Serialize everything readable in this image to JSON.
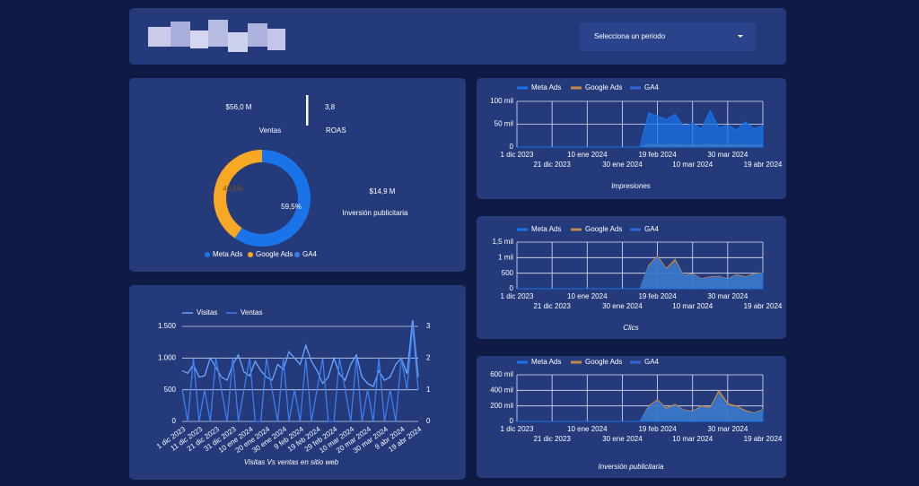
{
  "header": {
    "dropdown": "Selecciona un periodo"
  },
  "kpis": [
    {
      "value": "$56,0 M",
      "label": "Ventas"
    },
    {
      "value": "3,8",
      "label": "ROAS"
    },
    {
      "value": "$14,9 M",
      "label": "Inversión publicitaria"
    }
  ],
  "chart_data": [
    {
      "type": "pie",
      "categories": [
        "Meta Ads",
        "Google Ads",
        "GA4"
      ],
      "values": [
        59.5,
        40.5,
        0
      ],
      "value_labels": [
        "59,5%",
        "40,5%",
        null
      ],
      "colors": [
        "#1a73e8",
        "#f9a825",
        "#3f7be8"
      ]
    },
    {
      "type": "line",
      "title": "Visitas Vs ventas en sitio web",
      "categories": [
        "1 dic 2023",
        null,
        null,
        "11 dic 2023",
        null,
        null,
        "21 dic 2023",
        null,
        null,
        "31 dic 2023",
        null,
        null,
        "10 ene 2024",
        null,
        null,
        "20 ene 2024",
        null,
        null,
        "30 ene 2024",
        null,
        null,
        "9 feb 2024",
        null,
        null,
        "19 feb 2024",
        null,
        null,
        "29 feb 2024",
        null,
        null,
        "10 mar 2024",
        null,
        null,
        "20 mar 2024",
        null,
        null,
        "30 mar 2024",
        null,
        null,
        "9 abr 2024",
        null,
        null,
        "19 abr 2024"
      ],
      "series": [
        {
          "name": "Visitas",
          "color": "#6aa6ff",
          "values": [
            800,
            760,
            900,
            700,
            720,
            1000,
            850,
            700,
            650,
            900,
            1050,
            780,
            720,
            950,
            800,
            700,
            650,
            900,
            820,
            1100,
            1000,
            900,
            1200,
            950,
            800,
            600,
            700,
            1000,
            750,
            650,
            900,
            1050,
            700,
            600,
            550,
            800,
            650,
            700,
            900,
            1000,
            750,
            1600,
            700
          ]
        },
        {
          "name": "Ventas",
          "color": "#3d7ef0",
          "axis": "y2",
          "values": [
            1,
            0,
            2,
            0,
            1,
            0,
            2,
            1,
            0,
            2,
            0,
            1,
            2,
            0,
            0,
            2,
            1,
            0,
            2,
            0,
            1,
            0,
            2,
            0,
            1,
            2,
            0,
            0,
            2,
            1,
            0,
            2,
            0,
            1,
            0,
            2,
            0,
            1,
            0,
            2,
            1,
            3,
            1
          ]
        }
      ],
      "ylim": [
        0,
        1500
      ],
      "yticks": [
        0,
        500,
        {
          "value": 1000,
          "label": "1.000"
        },
        {
          "value": 1500,
          "label": "1.500"
        }
      ],
      "y2lim": [
        0,
        3
      ],
      "y2ticks": [
        0,
        1,
        2,
        3
      ],
      "grid": true
    },
    {
      "type": "area",
      "title": "Impresiones",
      "categories": [
        "1 dic 2023",
        null,
        null,
        null,
        "21 dic 2023",
        null,
        null,
        null,
        "10 ene 2024",
        null,
        null,
        null,
        "30 ene 2024",
        null,
        null,
        null,
        "19 feb 2024",
        null,
        null,
        null,
        "10 mar 2024",
        null,
        null,
        null,
        "30 mar 2024",
        null,
        null,
        null,
        "19 abr 2024"
      ],
      "series": [
        {
          "name": "Meta Ads",
          "color": "#1a73e8",
          "values": [
            0,
            0,
            0,
            0,
            0,
            0,
            0,
            0,
            0,
            0,
            0,
            0,
            0,
            0,
            0,
            75000,
            68000,
            60000,
            72000,
            45000,
            52000,
            40000,
            80000,
            42000,
            48000,
            38000,
            55000,
            40000,
            47000
          ]
        },
        {
          "name": "Google Ads",
          "color": "#c08a4a",
          "values": [
            0,
            0,
            0,
            0,
            0,
            0,
            0,
            0,
            0,
            0,
            0,
            0,
            0,
            0,
            0,
            6000,
            5000,
            5000,
            6000,
            4000,
            5000,
            4000,
            6000,
            4000,
            5000,
            4000,
            5000,
            4000,
            4000
          ]
        },
        {
          "name": "GA4",
          "color": "#3367d6",
          "values": [
            0,
            0,
            0,
            0,
            0,
            0,
            0,
            0,
            0,
            0,
            0,
            0,
            0,
            0,
            0,
            0,
            0,
            0,
            0,
            0,
            0,
            0,
            0,
            0,
            0,
            0,
            0,
            0,
            0
          ]
        }
      ],
      "ylim": [
        0,
        100000
      ],
      "yticks": [
        0,
        {
          "value": 50000,
          "label": "50 mil"
        },
        {
          "value": 100000,
          "label": "100 mil"
        }
      ],
      "grid": true
    },
    {
      "type": "area",
      "title": "Clics",
      "categories": [
        "1 dic 2023",
        null,
        null,
        null,
        "21 dic 2023",
        null,
        null,
        null,
        "10 ene 2024",
        null,
        null,
        null,
        "30 ene 2024",
        null,
        null,
        null,
        "19 feb 2024",
        null,
        null,
        null,
        "10 mar 2024",
        null,
        null,
        null,
        "30 mar 2024",
        null,
        null,
        null,
        "19 abr 2024"
      ],
      "series": [
        {
          "name": "Meta Ads",
          "color": "#1a73e8",
          "values": [
            0,
            0,
            0,
            0,
            0,
            0,
            0,
            0,
            0,
            0,
            0,
            0,
            0,
            0,
            0,
            700,
            1000,
            600,
            850,
            400,
            450,
            300,
            350,
            380,
            300,
            420,
            350,
            450,
            500
          ]
        },
        {
          "name": "Google Ads",
          "color": "#c08a4a",
          "values": [
            0,
            0,
            0,
            0,
            0,
            0,
            0,
            0,
            0,
            0,
            0,
            0,
            0,
            0,
            0,
            750,
            1050,
            650,
            950,
            420,
            480,
            320,
            380,
            400,
            320,
            450,
            380,
            480,
            520
          ]
        },
        {
          "name": "GA4",
          "color": "#3367d6",
          "values": [
            0,
            0,
            0,
            0,
            0,
            0,
            0,
            0,
            0,
            0,
            0,
            0,
            0,
            0,
            0,
            0,
            0,
            0,
            0,
            0,
            0,
            0,
            0,
            0,
            0,
            0,
            0,
            0,
            0
          ]
        }
      ],
      "ylim": [
        0,
        1500
      ],
      "yticks": [
        0,
        500,
        {
          "value": 1000,
          "label": "1 mil"
        },
        {
          "value": 1500,
          "label": "1,5 mil"
        }
      ],
      "grid": true
    },
    {
      "type": "area",
      "title": "Inversión publicitaria",
      "categories": [
        "1 dic 2023",
        null,
        null,
        null,
        "21 dic 2023",
        null,
        null,
        null,
        "10 ene 2024",
        null,
        null,
        null,
        "30 ene 2024",
        null,
        null,
        null,
        "19 feb 2024",
        null,
        null,
        null,
        "10 mar 2024",
        null,
        null,
        null,
        "30 mar 2024",
        null,
        null,
        null,
        "19 abr 2024"
      ],
      "series": [
        {
          "name": "Meta Ads",
          "color": "#1a73e8",
          "values": [
            0,
            0,
            0,
            0,
            0,
            0,
            0,
            0,
            0,
            0,
            0,
            0,
            0,
            0,
            0,
            180000,
            260000,
            150000,
            200000,
            140000,
            120000,
            180000,
            160000,
            350000,
            200000,
            180000,
            120000,
            100000,
            140000
          ]
        },
        {
          "name": "Google Ads",
          "color": "#c08a4a",
          "values": [
            0,
            0,
            0,
            0,
            0,
            0,
            0,
            0,
            0,
            0,
            0,
            0,
            0,
            0,
            0,
            200000,
            280000,
            170000,
            220000,
            150000,
            130000,
            200000,
            180000,
            400000,
            230000,
            200000,
            140000,
            110000,
            150000
          ]
        },
        {
          "name": "GA4",
          "color": "#3367d6",
          "values": [
            0,
            0,
            0,
            0,
            0,
            0,
            0,
            0,
            0,
            0,
            0,
            0,
            0,
            0,
            0,
            0,
            0,
            0,
            0,
            0,
            0,
            0,
            0,
            0,
            0,
            0,
            0,
            0,
            0
          ]
        }
      ],
      "ylim": [
        0,
        600000
      ],
      "yticks": [
        0,
        {
          "value": 200000,
          "label": "200 mil"
        },
        {
          "value": 400000,
          "label": "400 mil"
        },
        {
          "value": 600000,
          "label": "600 mil"
        }
      ],
      "grid": true
    }
  ]
}
